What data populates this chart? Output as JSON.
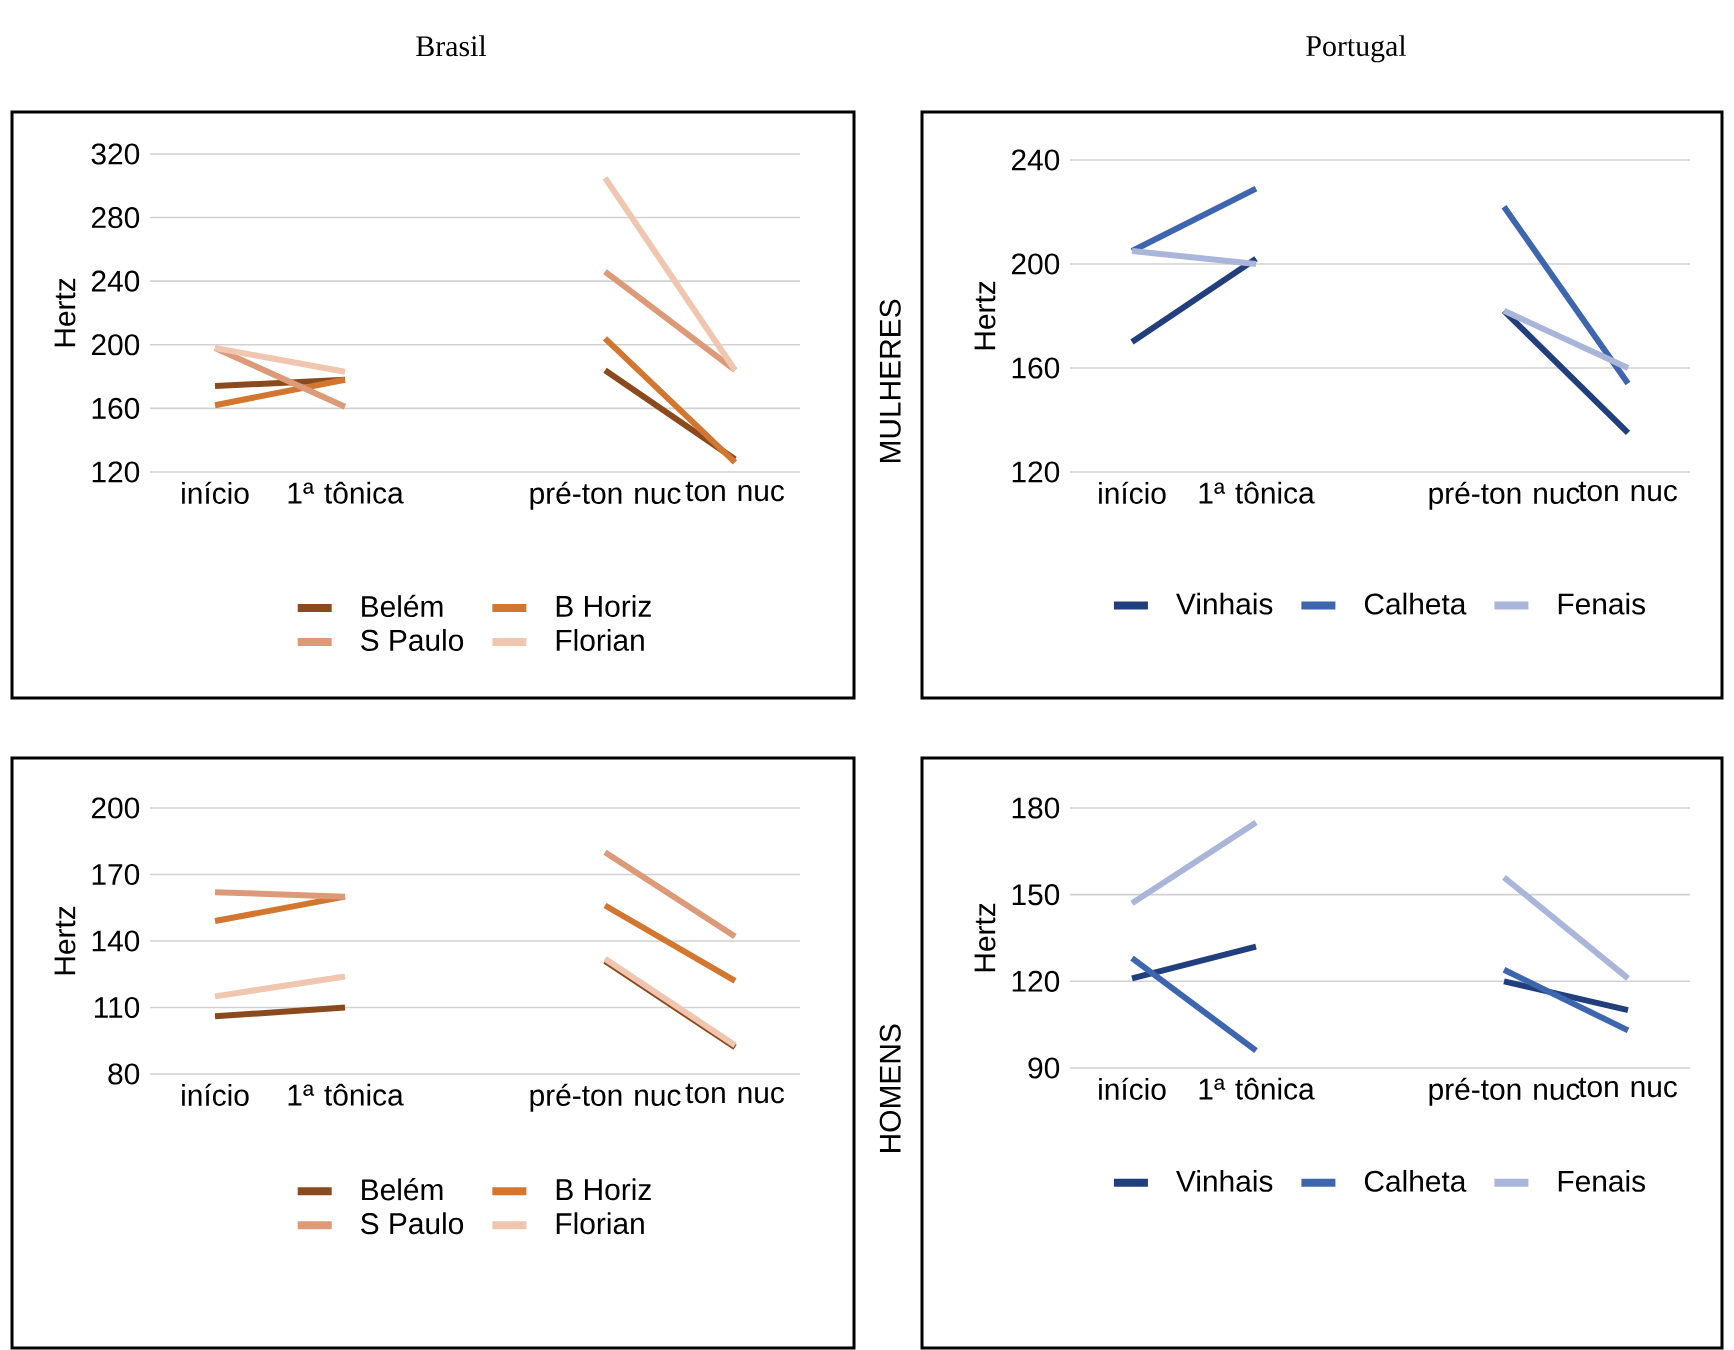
{
  "chart_data": [
    {
      "type": "line",
      "title": "Brasil",
      "ylabel": "Hertz",
      "categories": [
        "início",
        "1ª tônica",
        null,
        "pré-ton nuc",
        "ton nuc"
      ],
      "ylim": [
        120,
        320
      ],
      "yticks": [
        120,
        160,
        200,
        240,
        280,
        320
      ],
      "grid": "y",
      "legend": "bottom",
      "series": [
        {
          "name": "Belém",
          "color": "#8b4a1e",
          "values": [
            174,
            178,
            null,
            184,
            128
          ]
        },
        {
          "name": "B Horiz",
          "color": "#d3762f",
          "values": [
            162,
            178,
            null,
            204,
            126
          ]
        },
        {
          "name": "S Paulo",
          "color": "#dd9a78",
          "values": [
            198,
            161,
            null,
            246,
            184
          ]
        },
        {
          "name": "Florian",
          "color": "#f1c6b0",
          "values": [
            198,
            183,
            null,
            305,
            184
          ]
        }
      ]
    },
    {
      "type": "line",
      "title": "Portugal",
      "ylabel": "Hertz",
      "annotations": [
        "MULHERES"
      ],
      "categories": [
        "início",
        "1ª tônica",
        null,
        "pré-ton nuc",
        "ton nuc"
      ],
      "ylim": [
        120,
        240
      ],
      "yticks": [
        120,
        160,
        200,
        240
      ],
      "grid": "y",
      "legend": "bottom",
      "series": [
        {
          "name": "Vinhais",
          "color": "#203f7c",
          "values": [
            170,
            202,
            null,
            182,
            135
          ]
        },
        {
          "name": "Calheta",
          "color": "#3e66ae",
          "values": [
            205,
            229,
            null,
            222,
            154
          ]
        },
        {
          "name": "Fenais",
          "color": "#a9b5d9",
          "values": [
            205,
            200,
            null,
            182,
            160
          ]
        }
      ]
    },
    {
      "type": "line",
      "ylabel": "Hertz",
      "categories": [
        "início",
        "1ª tônica",
        null,
        "pré-ton nuc",
        "ton nuc"
      ],
      "ylim": [
        80,
        200
      ],
      "yticks": [
        80,
        110,
        140,
        170,
        200
      ],
      "grid": "y",
      "legend": "bottom",
      "series": [
        {
          "name": "Belém",
          "color": "#8b4a1e",
          "values": [
            106,
            110,
            null,
            131,
            92
          ]
        },
        {
          "name": "B Horiz",
          "color": "#d3762f",
          "values": [
            149,
            160,
            null,
            156,
            122
          ]
        },
        {
          "name": "S Paulo",
          "color": "#dd9a78",
          "values": [
            162,
            160,
            null,
            180,
            142
          ]
        },
        {
          "name": "Florian",
          "color": "#f1c6b0",
          "values": [
            115,
            124,
            null,
            132,
            93
          ]
        }
      ]
    },
    {
      "type": "line",
      "ylabel": "Hertz",
      "annotations": [
        "HOMENS"
      ],
      "categories": [
        "início",
        "1ª tônica",
        null,
        "pré-ton nuc",
        "ton nuc"
      ],
      "ylim": [
        90,
        180
      ],
      "yticks": [
        90,
        120,
        150,
        180
      ],
      "grid": "y",
      "legend": "bottom",
      "series": [
        {
          "name": "Vinhais",
          "color": "#203f7c",
          "values": [
            121,
            132,
            null,
            120,
            110
          ]
        },
        {
          "name": "Calheta",
          "color": "#3e66ae",
          "values": [
            128,
            96,
            null,
            124,
            103
          ]
        },
        {
          "name": "Fenais",
          "color": "#a9b5d9",
          "values": [
            147,
            175,
            null,
            156,
            121
          ]
        }
      ]
    }
  ]
}
